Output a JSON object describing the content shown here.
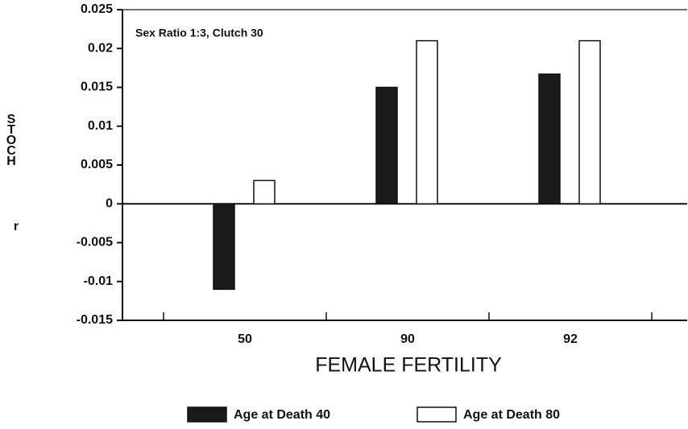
{
  "chart_data": {
    "type": "bar",
    "annotation": "Sex Ratio 1:3, Clutch 30",
    "y_label": "STOCH",
    "y_label_symbol": "r",
    "x_label": "FEMALE FERTILITY",
    "categories": [
      "50",
      "90",
      "92"
    ],
    "series": [
      {
        "name": "Age at Death 40",
        "color": "#1a1a1a",
        "values": [
          -0.011,
          0.015,
          0.0167
        ]
      },
      {
        "name": "Age at Death 80",
        "color": "#ffffff",
        "values": [
          0.003,
          0.021,
          0.021
        ]
      }
    ],
    "ylim": [
      -0.015,
      0.025
    ],
    "yticks": [
      -0.015,
      -0.01,
      -0.005,
      0,
      0.005,
      0.01,
      0.015,
      0.02,
      0.025
    ],
    "grid": false
  }
}
